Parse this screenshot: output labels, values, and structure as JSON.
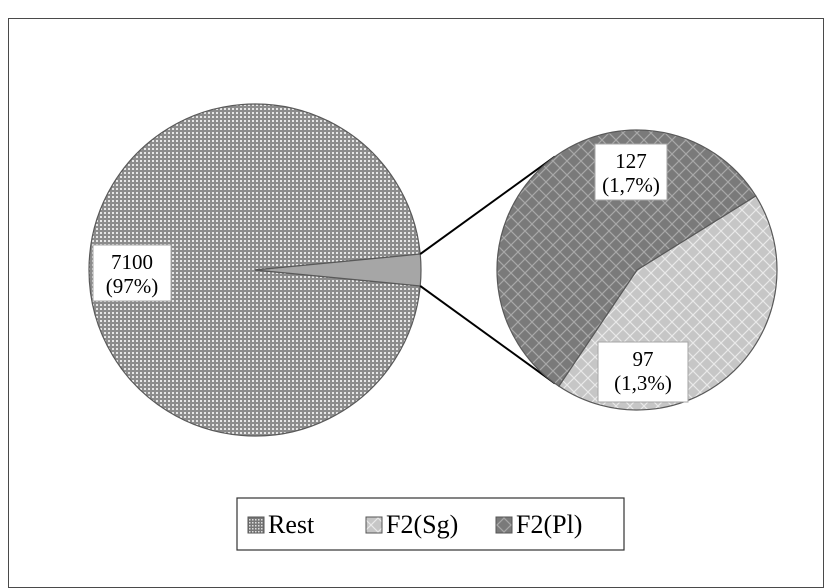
{
  "chart_data": {
    "type": "pie",
    "subtype": "pie-of-pie",
    "title": "",
    "slices": [
      {
        "name": "Rest",
        "value": 7100,
        "percent_label": "(97%)",
        "value_label": "7100",
        "pattern": "dots",
        "color": "#a6a6a6"
      },
      {
        "name": "F2(Sg)",
        "value": 97,
        "percent_label": "(1,3%)",
        "value_label": "97",
        "pattern": "diamonds-light",
        "color": "#c8c8c8"
      },
      {
        "name": "F2(Pl)",
        "value": 127,
        "percent_label": "(1,7%)",
        "value_label": "127",
        "pattern": "diamonds-dark",
        "color": "#7f7f7f"
      }
    ],
    "secondary_pie": [
      "F2(Sg)",
      "F2(Pl)"
    ],
    "legend": {
      "position": "bottom",
      "entries": [
        "Rest",
        "F2(Sg)",
        "F2(Pl)"
      ]
    },
    "colors": {
      "outline": "#595959",
      "frame": "#4a4a4a",
      "connector": "#000000"
    }
  }
}
